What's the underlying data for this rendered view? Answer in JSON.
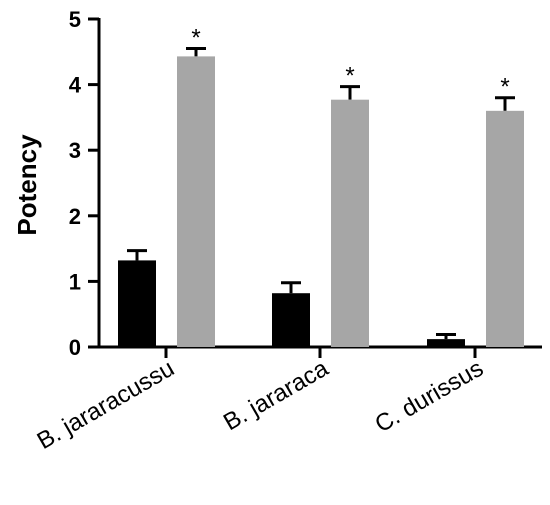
{
  "chart_data": {
    "type": "bar",
    "ylabel": "Potency",
    "ylim": [
      0,
      5
    ],
    "yticks": [
      "0",
      "1",
      "2",
      "3",
      "4",
      "5"
    ],
    "categories": [
      "B. jararacussu",
      "B. jararaca",
      "C. durissus"
    ],
    "series": [
      {
        "color": "#000000",
        "values": [
          1.32,
          0.82,
          0.12
        ],
        "errors": [
          0.15,
          0.16,
          0.07
        ],
        "annotations": [
          "",
          "",
          ""
        ]
      },
      {
        "color": "#a6a6a6",
        "values": [
          4.43,
          3.77,
          3.6
        ],
        "errors": [
          0.12,
          0.2,
          0.2
        ],
        "annotations": [
          "*",
          "*",
          "*"
        ]
      }
    ]
  }
}
